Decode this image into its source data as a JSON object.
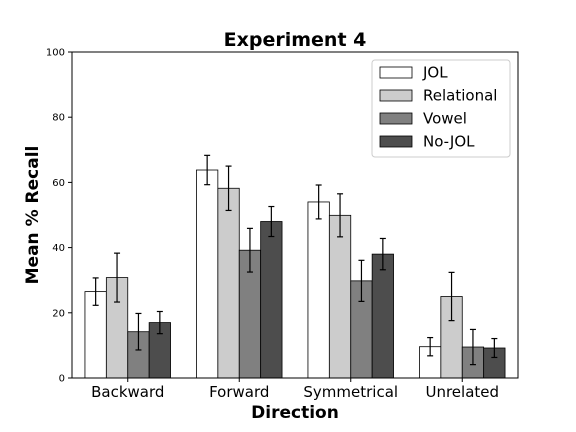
{
  "chart_data": {
    "type": "bar",
    "title": "Experiment 4",
    "xlabel": "Direction",
    "ylabel": "Mean % Recall",
    "ylim": [
      0,
      100
    ],
    "yticks": [
      0,
      20,
      40,
      60,
      80,
      100
    ],
    "categories": [
      "Backward",
      "Forward",
      "Symmetrical",
      "Unrelated"
    ],
    "series": [
      {
        "name": "JOL",
        "color": "#ffffff",
        "values": [
          26.5,
          63.8,
          54.0,
          9.6
        ],
        "errors": [
          4.2,
          4.5,
          5.2,
          2.8
        ]
      },
      {
        "name": "Relational",
        "color": "#cccccc",
        "values": [
          30.8,
          58.2,
          49.9,
          25.0
        ],
        "errors": [
          7.5,
          6.8,
          6.6,
          7.4
        ]
      },
      {
        "name": "Vowel",
        "color": "#808080",
        "values": [
          14.2,
          39.2,
          29.8,
          9.5
        ],
        "errors": [
          5.6,
          6.7,
          6.3,
          5.4
        ]
      },
      {
        "name": "No-JOL",
        "color": "#4d4d4d",
        "values": [
          17.0,
          48.0,
          38.0,
          9.2
        ],
        "errors": [
          3.4,
          4.6,
          4.8,
          2.9
        ]
      }
    ],
    "legend_position": "top-right",
    "grid": false
  }
}
